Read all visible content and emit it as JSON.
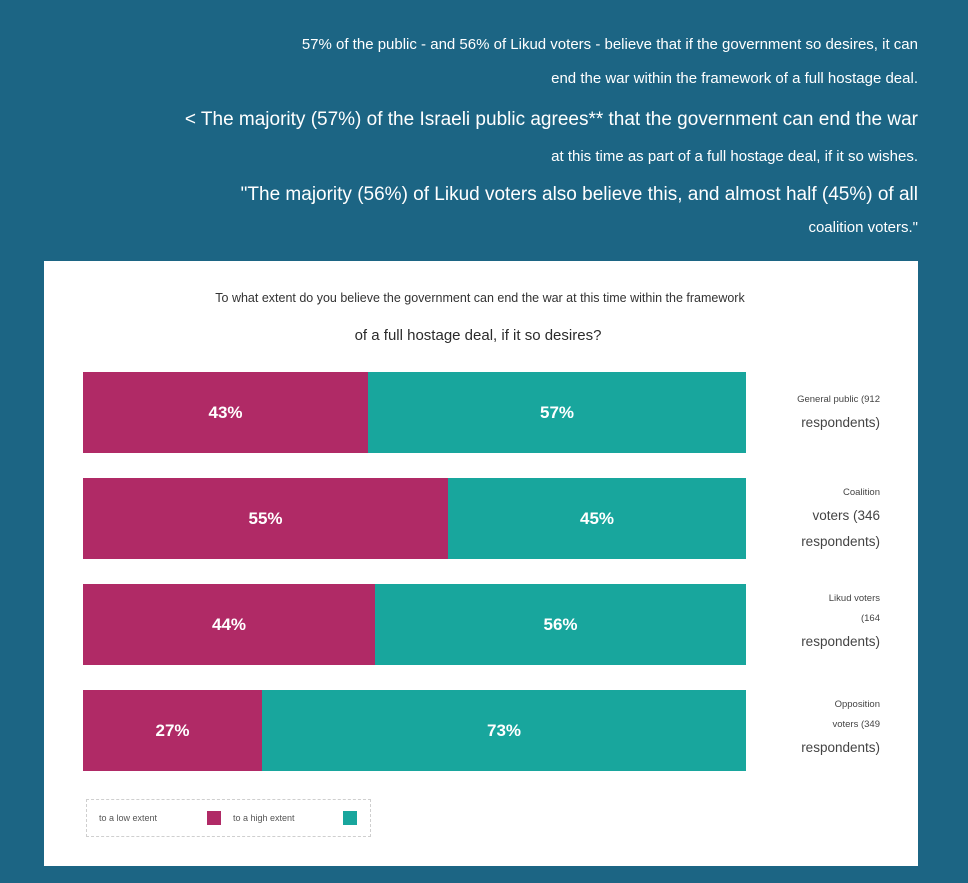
{
  "header": {
    "lines": [
      "57% of the public - and 56% of Likud voters - believe that if the government so desires, it can",
      "end the war within the framework of a full hostage deal.",
      "< The majority (57%) of the Israeli public agrees** that the government can end the war",
      "at this time as part of a full hostage deal, if it so wishes.",
      "\"The majority (56%) of Likud voters also believe this, and almost half (45%) of all",
      "coalition voters.\""
    ]
  },
  "chart_data": {
    "type": "bar",
    "orientation": "horizontal",
    "stacked": true,
    "title_line1": "To what extent do you believe the government can end the war at this time within the framework",
    "title_line2": "of a full hostage deal, if it so desires?",
    "categories": [
      "General public (912 respondents)",
      "Coalition voters (346 respondents)",
      "Likud voters (164 respondents)",
      "Opposition voters (349 respondents)"
    ],
    "category_label_lines": [
      [
        "General public (912",
        "respondents)"
      ],
      [
        "Coalition",
        "voters (346",
        "respondents)"
      ],
      [
        "Likud voters",
        "(164",
        "respondents)"
      ],
      [
        "Opposition",
        "voters (349",
        "respondents)"
      ]
    ],
    "series": [
      {
        "name": "to a low extent",
        "values": [
          43,
          55,
          44,
          27
        ],
        "labels": [
          "43%",
          "55%",
          "44%",
          "27%"
        ],
        "color": "#b02a66"
      },
      {
        "name": "to a high extent",
        "values": [
          57,
          45,
          56,
          73
        ],
        "labels": [
          "57%",
          "45%",
          "56%",
          "73%"
        ],
        "color": "#18a69d"
      }
    ],
    "xlim": [
      0,
      100
    ],
    "grid": false,
    "legend": "bottom-left"
  }
}
